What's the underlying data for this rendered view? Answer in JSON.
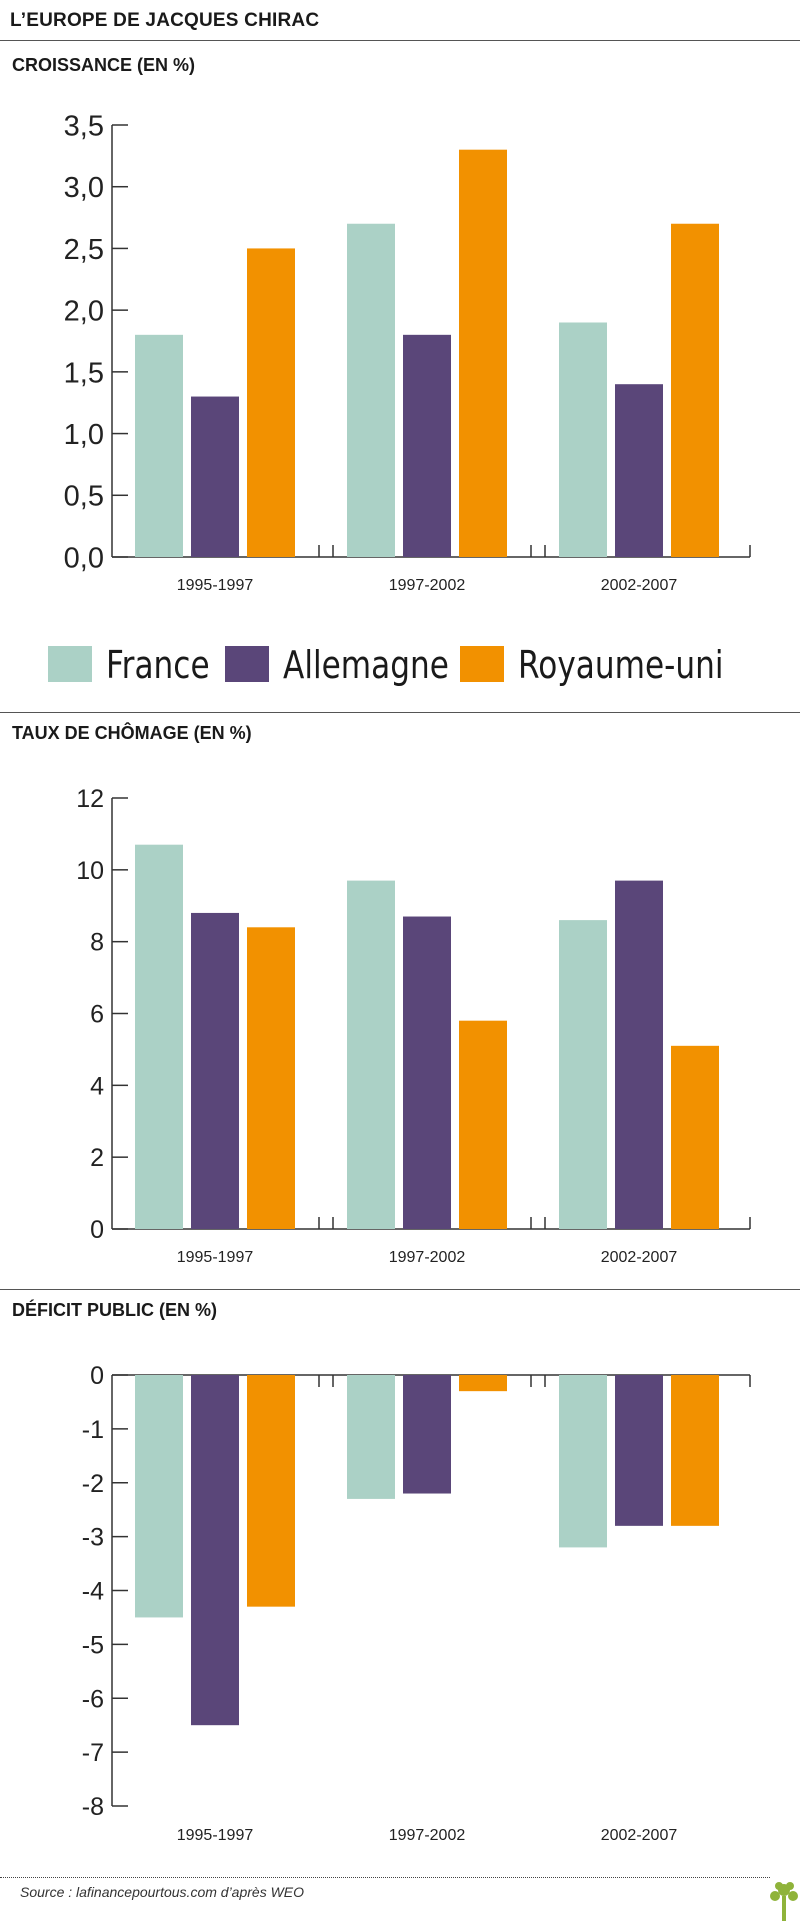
{
  "title": "L’EUROPE DE JACQUES CHIRAC",
  "legend": [
    {
      "name": "France",
      "color": "#abd1c6"
    },
    {
      "name": "Allemagne",
      "color": "#5a4679"
    },
    {
      "name": "Royaume-uni",
      "color": "#f29100"
    }
  ],
  "source": "Source : lafinancepourtous.com d’après WEO",
  "chart_data": [
    {
      "type": "bar",
      "title": "CROISSANCE (EN %)",
      "categories": [
        "1995-1997",
        "1997-2002",
        "2002-2007"
      ],
      "series": [
        {
          "name": "France",
          "values": [
            1.8,
            2.7,
            1.9
          ]
        },
        {
          "name": "Allemagne",
          "values": [
            1.3,
            1.8,
            1.4
          ]
        },
        {
          "name": "Royaume-uni",
          "values": [
            2.5,
            3.3,
            2.7
          ]
        }
      ],
      "ylim": [
        0,
        3.5
      ],
      "yticks": [
        "0,0",
        "0,5",
        "1,0",
        "1,5",
        "2,0",
        "2,5",
        "3,0",
        "3,5"
      ],
      "xlabel": "",
      "ylabel": "",
      "grid": false
    },
    {
      "type": "bar",
      "title": "TAUX DE CHÔMAGE (EN %)",
      "categories": [
        "1995-1997",
        "1997-2002",
        "2002-2007"
      ],
      "series": [
        {
          "name": "France",
          "values": [
            10.7,
            9.7,
            8.6
          ]
        },
        {
          "name": "Allemagne",
          "values": [
            8.8,
            8.7,
            9.7
          ]
        },
        {
          "name": "Royaume-uni",
          "values": [
            8.4,
            5.8,
            5.1
          ]
        }
      ],
      "ylim": [
        0,
        12
      ],
      "yticks": [
        "0",
        "2",
        "4",
        "6",
        "8",
        "10",
        "12"
      ],
      "xlabel": "",
      "ylabel": "",
      "grid": false
    },
    {
      "type": "bar",
      "title": "DÉFICIT PUBLIC (EN %)",
      "categories": [
        "1995-1997",
        "1997-2002",
        "2002-2007"
      ],
      "series": [
        {
          "name": "France",
          "values": [
            -4.5,
            -2.3,
            -3.2
          ]
        },
        {
          "name": "Allemagne",
          "values": [
            -6.5,
            -2.2,
            -2.8
          ]
        },
        {
          "name": "Royaume-uni",
          "values": [
            -4.3,
            -0.3,
            -2.8
          ]
        }
      ],
      "ylim": [
        -8,
        0
      ],
      "yticks": [
        "0",
        "-1",
        "-2",
        "-3",
        "-4",
        "-5",
        "-6",
        "-7",
        "-8"
      ],
      "xlabel": "",
      "ylabel": "",
      "grid": false
    }
  ]
}
